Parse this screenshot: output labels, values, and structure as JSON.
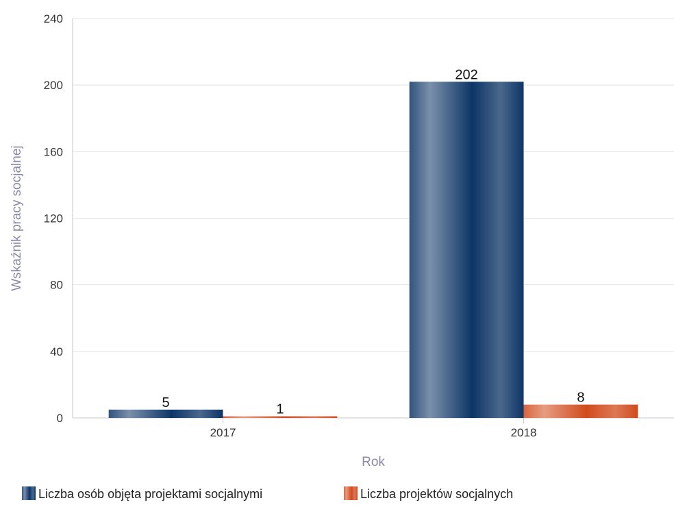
{
  "chart_data": {
    "type": "bar",
    "categories": [
      "2017",
      "2018"
    ],
    "series": [
      {
        "name": "Liczba osób objęta projektami socjalnymi",
        "values": [
          5,
          202
        ],
        "color": "#0d3566"
      },
      {
        "name": "Liczba projektów socjalnych",
        "values": [
          1,
          8
        ],
        "color": "#d14b1c"
      }
    ],
    "xlabel": "Rok",
    "ylabel": "Wskaźnik pracy socjalnej",
    "ylim": [
      0,
      240
    ],
    "yticks": [
      0,
      40,
      80,
      120,
      160,
      200,
      240
    ],
    "grid": true,
    "legend": "bottom-left"
  }
}
